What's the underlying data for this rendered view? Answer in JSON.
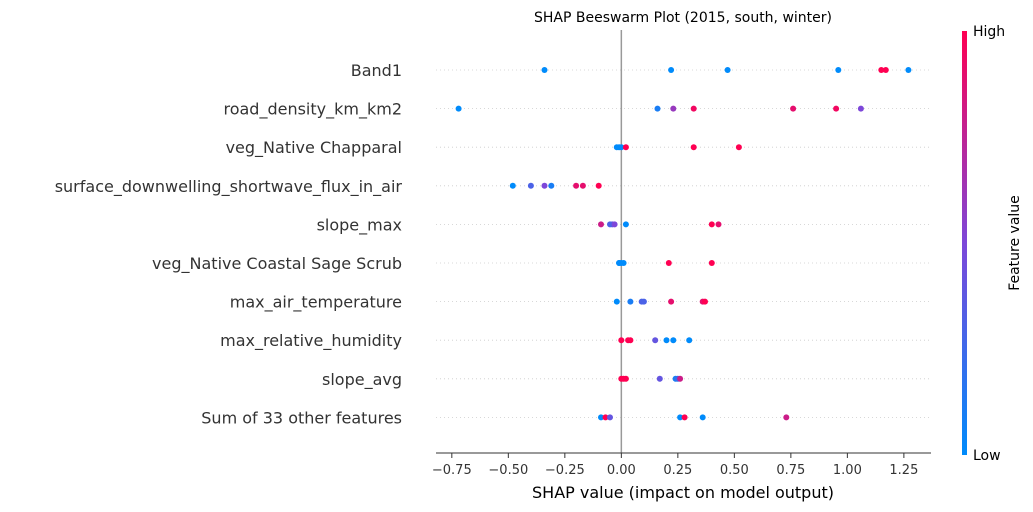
{
  "chart_data": {
    "type": "scatter",
    "title": "SHAP Beeswarm Plot (2015, south, winter)",
    "xlabel": "SHAP value (impact on model output)",
    "xlim": [
      -0.82,
      1.37
    ],
    "xticks": [
      "-0.75",
      "-0.50",
      "-0.25",
      "0.00",
      "0.25",
      "0.50",
      "0.75",
      "1.00",
      "1.25"
    ],
    "grid": false,
    "zero_line": true,
    "colorbar": {
      "label": "Feature value",
      "high_label": "High",
      "low_label": "Low",
      "low_color": "#008bfb",
      "high_color": "#ff0052"
    },
    "features": [
      {
        "name": "Band1",
        "points": [
          [
            -0.34,
            0
          ],
          [
            0.22,
            0
          ],
          [
            0.47,
            0
          ],
          [
            0.96,
            0
          ],
          [
            1.15,
            1
          ],
          [
            1.17,
            1
          ],
          [
            1.27,
            0
          ]
        ]
      },
      {
        "name": "road_density_km_km2",
        "points": [
          [
            -0.72,
            0
          ],
          [
            0.16,
            0.1
          ],
          [
            0.23,
            0.6
          ],
          [
            0.32,
            0.95
          ],
          [
            0.76,
            0.9
          ],
          [
            0.95,
            0.95
          ],
          [
            1.06,
            0.5
          ]
        ]
      },
      {
        "name": "veg_Native Chapparal ",
        "points": [
          [
            -0.01,
            0
          ],
          [
            -0.02,
            0
          ],
          [
            0.0,
            0
          ],
          [
            0.02,
            1
          ],
          [
            0.32,
            1
          ],
          [
            0.52,
            1
          ]
        ]
      },
      {
        "name": "surface_downwelling_shortwave_flux_in_air",
        "points": [
          [
            -0.48,
            0
          ],
          [
            -0.4,
            0.3
          ],
          [
            -0.34,
            0.5
          ],
          [
            -0.31,
            0.1
          ],
          [
            -0.2,
            0.9
          ],
          [
            -0.17,
            0.9
          ],
          [
            -0.1,
            1
          ]
        ]
      },
      {
        "name": "slope_max",
        "points": [
          [
            -0.04,
            0.4
          ],
          [
            -0.05,
            0.3
          ],
          [
            -0.03,
            0.5
          ],
          [
            -0.09,
            0.8
          ],
          [
            0.02,
            0
          ],
          [
            0.4,
            1
          ],
          [
            0.43,
            0.9
          ]
        ]
      },
      {
        "name": "veg_Native Coastal Sage Scrub ",
        "points": [
          [
            -0.01,
            0
          ],
          [
            -0.01,
            0
          ],
          [
            0.0,
            0
          ],
          [
            0.01,
            0
          ],
          [
            0.21,
            1
          ],
          [
            0.4,
            1
          ]
        ]
      },
      {
        "name": "max_air_temperature",
        "points": [
          [
            -0.02,
            0
          ],
          [
            0.04,
            0.1
          ],
          [
            0.09,
            0.3
          ],
          [
            0.1,
            0.3
          ],
          [
            0.22,
            0.9
          ],
          [
            0.36,
            0.9
          ],
          [
            0.37,
            1
          ]
        ]
      },
      {
        "name": "max_relative_humidity",
        "points": [
          [
            0.0,
            1
          ],
          [
            0.03,
            1
          ],
          [
            0.04,
            1
          ],
          [
            0.15,
            0.4
          ],
          [
            0.2,
            0
          ],
          [
            0.23,
            0
          ],
          [
            0.3,
            0
          ]
        ]
      },
      {
        "name": "slope_avg",
        "points": [
          [
            0.0,
            1
          ],
          [
            0.01,
            1
          ],
          [
            0.02,
            1
          ],
          [
            0.17,
            0.4
          ],
          [
            0.24,
            0.1
          ],
          [
            0.25,
            0.2
          ],
          [
            0.26,
            0.8
          ]
        ]
      },
      {
        "name": "Sum of 33 other features",
        "points": [
          [
            -0.09,
            0
          ],
          [
            -0.07,
            1
          ],
          [
            -0.05,
            0.4
          ],
          [
            0.26,
            0
          ],
          [
            0.28,
            1
          ],
          [
            0.36,
            0
          ],
          [
            0.73,
            0.8
          ]
        ]
      }
    ]
  }
}
